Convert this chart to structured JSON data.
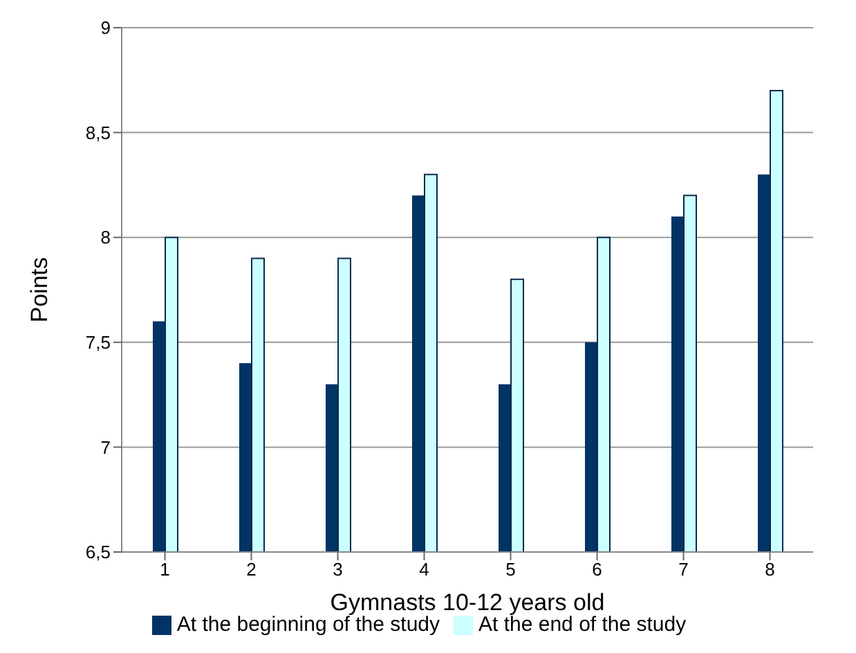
{
  "chart_data": {
    "type": "bar",
    "xlabel": "Gymnasts 10-12 years old",
    "ylabel": "Points",
    "categories": [
      "1",
      "2",
      "3",
      "4",
      "5",
      "6",
      "7",
      "8"
    ],
    "series": [
      {
        "name": "At the beginning of the study",
        "color": "#003366",
        "values": [
          7.6,
          7.4,
          7.3,
          8.2,
          7.3,
          7.5,
          8.1,
          8.3
        ]
      },
      {
        "name": "At the end of the study",
        "color": "#ccffff",
        "values": [
          8.0,
          7.9,
          7.9,
          8.3,
          7.8,
          8.0,
          8.2,
          8.7
        ]
      }
    ],
    "ylim": [
      6.5,
      9
    ],
    "yticks": [
      {
        "value": 6.5,
        "label": "6,5"
      },
      7,
      {
        "value": 7.5,
        "label": "7,5"
      },
      8,
      {
        "value": 8.5,
        "label": "8,5"
      },
      9
    ],
    "grid": "y",
    "legend": "bottom"
  }
}
